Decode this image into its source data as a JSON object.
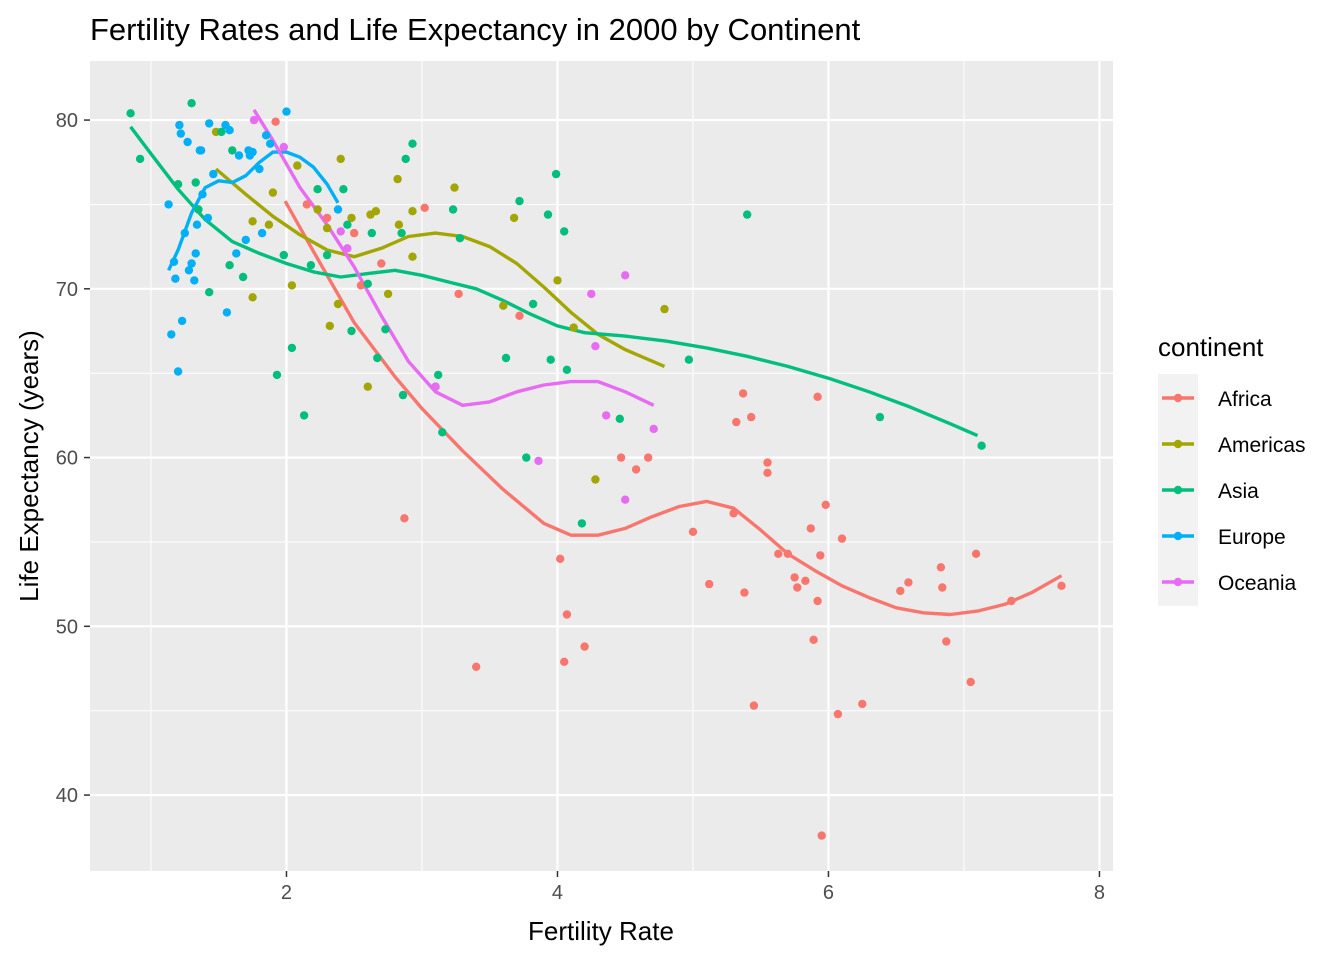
{
  "chart_data": {
    "type": "scatter",
    "title": "Fertility Rates and Life Expectancy in 2000 by Continent",
    "xlabel": "Fertility Rate",
    "ylabel": "Life Expectancy (years)",
    "xlim": [
      0.55,
      8.1
    ],
    "ylim": [
      35.5,
      83.5
    ],
    "x_ticks": [
      2,
      4,
      6,
      8
    ],
    "y_ticks": [
      40,
      50,
      60,
      70,
      80
    ],
    "grid": true,
    "legend": {
      "title": "continent",
      "position": "right"
    },
    "series": [
      {
        "name": "Africa",
        "color": "#F8766D",
        "points": [
          [
            1.92,
            79.9
          ],
          [
            2.15,
            75.0
          ],
          [
            2.3,
            74.2
          ],
          [
            2.5,
            73.3
          ],
          [
            2.55,
            70.2
          ],
          [
            2.7,
            71.5
          ],
          [
            3.02,
            74.8
          ],
          [
            2.87,
            56.4
          ],
          [
            3.27,
            69.7
          ],
          [
            3.4,
            47.6
          ],
          [
            3.72,
            68.4
          ],
          [
            4.02,
            54.0
          ],
          [
            4.05,
            47.9
          ],
          [
            4.07,
            50.7
          ],
          [
            4.2,
            48.8
          ],
          [
            4.47,
            60.0
          ],
          [
            4.58,
            59.3
          ],
          [
            4.67,
            60.0
          ],
          [
            5.0,
            55.6
          ],
          [
            5.12,
            52.5
          ],
          [
            5.3,
            56.7
          ],
          [
            5.32,
            62.1
          ],
          [
            5.37,
            63.8
          ],
          [
            5.38,
            52.0
          ],
          [
            5.43,
            62.4
          ],
          [
            5.45,
            45.3
          ],
          [
            5.55,
            59.7
          ],
          [
            5.55,
            59.1
          ],
          [
            5.63,
            54.3
          ],
          [
            5.7,
            54.3
          ],
          [
            5.75,
            52.9
          ],
          [
            5.77,
            52.3
          ],
          [
            5.83,
            52.7
          ],
          [
            5.87,
            55.8
          ],
          [
            5.89,
            49.2
          ],
          [
            5.92,
            51.5
          ],
          [
            5.92,
            63.6
          ],
          [
            5.94,
            54.2
          ],
          [
            5.95,
            37.6
          ],
          [
            5.98,
            57.2
          ],
          [
            6.07,
            44.8
          ],
          [
            6.1,
            55.2
          ],
          [
            6.25,
            45.4
          ],
          [
            6.53,
            52.1
          ],
          [
            6.59,
            52.6
          ],
          [
            6.83,
            53.5
          ],
          [
            6.84,
            52.3
          ],
          [
            6.87,
            49.1
          ],
          [
            7.05,
            46.7
          ],
          [
            7.09,
            54.3
          ],
          [
            7.35,
            51.5
          ],
          [
            7.72,
            52.4
          ]
        ],
        "smooth": [
          [
            1.99,
            75.2
          ],
          [
            2.2,
            72.2
          ],
          [
            2.5,
            68.0
          ],
          [
            2.8,
            64.8
          ],
          [
            3.0,
            62.9
          ],
          [
            3.3,
            60.4
          ],
          [
            3.6,
            58.1
          ],
          [
            3.9,
            56.1
          ],
          [
            4.1,
            55.4
          ],
          [
            4.3,
            55.4
          ],
          [
            4.5,
            55.8
          ],
          [
            4.7,
            56.5
          ],
          [
            4.9,
            57.1
          ],
          [
            5.1,
            57.4
          ],
          [
            5.3,
            57.0
          ],
          [
            5.5,
            55.7
          ],
          [
            5.7,
            54.3
          ],
          [
            5.9,
            53.3
          ],
          [
            6.1,
            52.4
          ],
          [
            6.3,
            51.7
          ],
          [
            6.5,
            51.1
          ],
          [
            6.7,
            50.8
          ],
          [
            6.9,
            50.7
          ],
          [
            7.1,
            50.9
          ],
          [
            7.3,
            51.3
          ],
          [
            7.5,
            52.0
          ],
          [
            7.72,
            53.0
          ]
        ]
      },
      {
        "name": "Americas",
        "color": "#A3A500",
        "points": [
          [
            1.48,
            79.3
          ],
          [
            1.75,
            74.0
          ],
          [
            1.75,
            69.5
          ],
          [
            1.87,
            73.8
          ],
          [
            1.9,
            75.7
          ],
          [
            2.04,
            70.2
          ],
          [
            2.08,
            77.3
          ],
          [
            2.23,
            74.7
          ],
          [
            2.3,
            73.6
          ],
          [
            2.32,
            67.8
          ],
          [
            2.38,
            69.1
          ],
          [
            2.4,
            77.7
          ],
          [
            2.48,
            74.2
          ],
          [
            2.6,
            64.2
          ],
          [
            2.62,
            74.4
          ],
          [
            2.66,
            74.6
          ],
          [
            2.75,
            69.7
          ],
          [
            2.82,
            76.5
          ],
          [
            2.83,
            73.8
          ],
          [
            2.93,
            74.6
          ],
          [
            2.93,
            71.9
          ],
          [
            3.24,
            76.0
          ],
          [
            3.6,
            69.0
          ],
          [
            3.68,
            74.2
          ],
          [
            4.0,
            70.5
          ],
          [
            4.12,
            67.7
          ],
          [
            4.28,
            58.7
          ],
          [
            4.79,
            68.8
          ]
        ],
        "smooth": [
          [
            1.48,
            77.1
          ],
          [
            1.7,
            75.6
          ],
          [
            1.9,
            74.3
          ],
          [
            2.1,
            73.2
          ],
          [
            2.3,
            72.3
          ],
          [
            2.5,
            71.9
          ],
          [
            2.7,
            72.4
          ],
          [
            2.9,
            73.1
          ],
          [
            3.1,
            73.3
          ],
          [
            3.3,
            73.1
          ],
          [
            3.5,
            72.5
          ],
          [
            3.7,
            71.5
          ],
          [
            3.9,
            70.1
          ],
          [
            4.1,
            68.6
          ],
          [
            4.3,
            67.3
          ],
          [
            4.5,
            66.4
          ],
          [
            4.79,
            65.4
          ]
        ]
      },
      {
        "name": "Asia",
        "color": "#00BF7D",
        "points": [
          [
            0.85,
            80.4
          ],
          [
            0.92,
            77.7
          ],
          [
            1.2,
            76.2
          ],
          [
            1.3,
            81.0
          ],
          [
            1.33,
            76.3
          ],
          [
            1.35,
            74.7
          ],
          [
            1.43,
            69.8
          ],
          [
            1.52,
            79.3
          ],
          [
            1.58,
            71.4
          ],
          [
            1.6,
            78.2
          ],
          [
            1.68,
            70.7
          ],
          [
            1.93,
            64.9
          ],
          [
            1.98,
            72.0
          ],
          [
            2.04,
            66.5
          ],
          [
            2.13,
            62.5
          ],
          [
            2.18,
            71.4
          ],
          [
            2.23,
            75.9
          ],
          [
            2.3,
            72.0
          ],
          [
            2.42,
            75.9
          ],
          [
            2.45,
            73.8
          ],
          [
            2.48,
            67.5
          ],
          [
            2.6,
            70.3
          ],
          [
            2.63,
            73.3
          ],
          [
            2.67,
            65.9
          ],
          [
            2.73,
            67.6
          ],
          [
            2.85,
            73.3
          ],
          [
            2.86,
            63.7
          ],
          [
            2.88,
            77.7
          ],
          [
            2.93,
            78.6
          ],
          [
            3.1,
            64.2
          ],
          [
            3.12,
            64.9
          ],
          [
            3.15,
            61.5
          ],
          [
            3.23,
            74.7
          ],
          [
            3.28,
            73.0
          ],
          [
            3.62,
            65.9
          ],
          [
            3.72,
            75.2
          ],
          [
            3.77,
            60.0
          ],
          [
            3.82,
            69.1
          ],
          [
            3.93,
            74.4
          ],
          [
            3.95,
            65.8
          ],
          [
            3.99,
            76.8
          ],
          [
            4.05,
            73.4
          ],
          [
            4.07,
            65.2
          ],
          [
            4.18,
            56.1
          ],
          [
            4.46,
            62.3
          ],
          [
            4.97,
            65.8
          ],
          [
            5.4,
            74.4
          ],
          [
            6.38,
            62.4
          ],
          [
            7.13,
            60.7
          ]
        ],
        "smooth": [
          [
            0.85,
            79.6
          ],
          [
            1.0,
            78.0
          ],
          [
            1.2,
            75.9
          ],
          [
            1.4,
            74.1
          ],
          [
            1.6,
            72.8
          ],
          [
            1.8,
            72.1
          ],
          [
            2.0,
            71.5
          ],
          [
            2.2,
            71.0
          ],
          [
            2.4,
            70.7
          ],
          [
            2.6,
            70.9
          ],
          [
            2.8,
            71.1
          ],
          [
            3.0,
            70.8
          ],
          [
            3.2,
            70.4
          ],
          [
            3.4,
            70.0
          ],
          [
            3.6,
            69.3
          ],
          [
            3.8,
            68.5
          ],
          [
            4.0,
            67.8
          ],
          [
            4.2,
            67.4
          ],
          [
            4.5,
            67.2
          ],
          [
            4.8,
            66.9
          ],
          [
            5.1,
            66.5
          ],
          [
            5.4,
            66.0
          ],
          [
            5.7,
            65.4
          ],
          [
            6.0,
            64.7
          ],
          [
            6.3,
            63.9
          ],
          [
            6.6,
            63.0
          ],
          [
            6.9,
            62.0
          ],
          [
            7.1,
            61.3
          ]
        ]
      },
      {
        "name": "Europe",
        "color": "#00B0F6",
        "points": [
          [
            1.13,
            75.0
          ],
          [
            1.15,
            67.3
          ],
          [
            1.17,
            71.6
          ],
          [
            1.18,
            70.6
          ],
          [
            1.2,
            65.1
          ],
          [
            1.21,
            79.7
          ],
          [
            1.22,
            79.2
          ],
          [
            1.23,
            68.1
          ],
          [
            1.25,
            73.3
          ],
          [
            1.27,
            78.7
          ],
          [
            1.28,
            71.1
          ],
          [
            1.3,
            71.5
          ],
          [
            1.32,
            70.5
          ],
          [
            1.33,
            72.1
          ],
          [
            1.34,
            73.8
          ],
          [
            1.36,
            78.2
          ],
          [
            1.37,
            78.2
          ],
          [
            1.38,
            75.6
          ],
          [
            1.42,
            74.2
          ],
          [
            1.43,
            79.8
          ],
          [
            1.46,
            76.8
          ],
          [
            1.55,
            79.7
          ],
          [
            1.56,
            68.6
          ],
          [
            1.58,
            79.4
          ],
          [
            1.63,
            72.1
          ],
          [
            1.65,
            77.9
          ],
          [
            1.7,
            72.9
          ],
          [
            1.72,
            78.2
          ],
          [
            1.73,
            77.9
          ],
          [
            1.75,
            78.1
          ],
          [
            1.8,
            77.1
          ],
          [
            1.82,
            73.3
          ],
          [
            1.85,
            79.1
          ],
          [
            1.88,
            78.6
          ],
          [
            2.0,
            80.5
          ],
          [
            2.38,
            74.7
          ]
        ],
        "smooth": [
          [
            1.13,
            71.1
          ],
          [
            1.2,
            72.3
          ],
          [
            1.3,
            74.5
          ],
          [
            1.4,
            76.0
          ],
          [
            1.5,
            76.4
          ],
          [
            1.6,
            76.3
          ],
          [
            1.7,
            76.7
          ],
          [
            1.8,
            77.5
          ],
          [
            1.9,
            78.1
          ],
          [
            2.0,
            78.1
          ],
          [
            2.1,
            77.8
          ],
          [
            2.2,
            77.2
          ],
          [
            2.3,
            76.2
          ],
          [
            2.38,
            75.1
          ]
        ]
      },
      {
        "name": "Oceania",
        "color": "#E76BF3",
        "points": [
          [
            1.76,
            80.0
          ],
          [
            1.98,
            78.4
          ],
          [
            2.4,
            73.4
          ],
          [
            2.45,
            72.4
          ],
          [
            3.1,
            64.2
          ],
          [
            3.86,
            59.8
          ],
          [
            4.25,
            69.7
          ],
          [
            4.28,
            66.6
          ],
          [
            4.36,
            62.5
          ],
          [
            4.5,
            70.8
          ],
          [
            4.5,
            57.5
          ],
          [
            4.71,
            61.7
          ]
        ],
        "smooth": [
          [
            1.76,
            80.6
          ],
          [
            1.9,
            78.8
          ],
          [
            2.1,
            76.0
          ],
          [
            2.3,
            73.8
          ],
          [
            2.5,
            71.3
          ],
          [
            2.7,
            68.4
          ],
          [
            2.9,
            65.7
          ],
          [
            3.1,
            63.9
          ],
          [
            3.3,
            63.1
          ],
          [
            3.5,
            63.3
          ],
          [
            3.7,
            63.9
          ],
          [
            3.9,
            64.3
          ],
          [
            4.1,
            64.5
          ],
          [
            4.3,
            64.5
          ],
          [
            4.5,
            63.9
          ],
          [
            4.71,
            63.1
          ]
        ]
      }
    ]
  }
}
